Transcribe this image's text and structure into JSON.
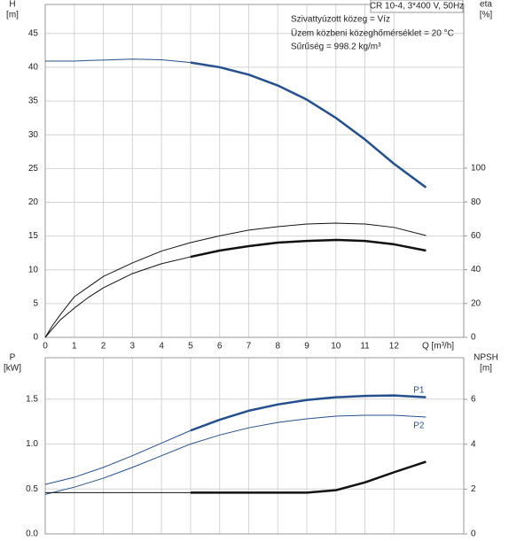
{
  "chart_data": [
    {
      "type": "line",
      "title": "CR 10-4, 3*400 V, 50Hz",
      "annotations": [
        "Szivattyúzott közeg = Víz",
        "Üzem közbeni közeghőmérséklet = 20 °C",
        "Sűrűség = 998.2 kg/m³"
      ],
      "xlabel": "Q [m³/h]",
      "ylabel": "H",
      "yunit": "[m]",
      "y2label": "eta",
      "y2unit": "[%]",
      "xlim": [
        0,
        14.4
      ],
      "xticks": [
        0,
        1,
        2,
        3,
        4,
        5,
        6,
        7,
        8,
        9,
        10,
        11,
        12
      ],
      "ylim": [
        0,
        49.3
      ],
      "yticks": [
        0,
        5,
        10,
        15,
        20,
        25,
        30,
        35,
        40,
        45
      ],
      "y2lim": [
        0,
        196.8
      ],
      "y2ticks": [
        0,
        20,
        40,
        60,
        80,
        100
      ],
      "grid": true,
      "show_xtick_labels": true,
      "x": [
        0,
        0.25,
        0.5,
        1,
        1.5,
        2,
        3,
        4,
        5,
        6,
        7,
        8,
        9,
        10,
        11,
        12,
        13.1
      ],
      "series": [
        {
          "color": "#24508f",
          "width": 1,
          "values": [
            40.9,
            40.9,
            40.9,
            40.9,
            41.0,
            41.05,
            41.2,
            41.1,
            40.7,
            null,
            null,
            null,
            null,
            null,
            null,
            null,
            null
          ]
        },
        {
          "color": "#24508f",
          "width": 2.5,
          "values": [
            null,
            null,
            null,
            null,
            null,
            null,
            null,
            null,
            40.7,
            40.0,
            38.9,
            37.3,
            35.2,
            32.5,
            29.3,
            25.7,
            22.2
          ]
        },
        {
          "color": "#111111",
          "width": 1,
          "axis": "y2",
          "values": [
            0,
            7,
            13,
            24,
            30,
            36,
            44,
            51,
            56,
            60,
            63.4,
            65.4,
            67,
            67.5,
            67,
            65,
            60.2
          ]
        },
        {
          "color": "#111111",
          "width": 1,
          "axis": "y2",
          "values": [
            0,
            5,
            10,
            17.3,
            23.8,
            29.3,
            37.7,
            43.5,
            47.6,
            null,
            null,
            null,
            null,
            null,
            null,
            null,
            null
          ]
        },
        {
          "color": "#111111",
          "width": 2.5,
          "axis": "y2",
          "values": [
            null,
            null,
            null,
            null,
            null,
            null,
            null,
            null,
            47.6,
            51.3,
            53.9,
            56,
            57,
            57.6,
            57,
            55,
            51.3
          ]
        }
      ]
    },
    {
      "type": "line",
      "ylabel": "P",
      "yunit": "[kW]",
      "y2label": "NPSH",
      "y2unit": "[m]",
      "xlim": [
        0,
        14.4
      ],
      "xticks": [
        0,
        1,
        2,
        3,
        4,
        5,
        6,
        7,
        8,
        9,
        10,
        11,
        12
      ],
      "ylim": [
        0,
        1.96
      ],
      "yticks": [
        {
          "value": 0,
          "label": "0.0"
        },
        {
          "value": 0.5,
          "label": "0.5"
        },
        {
          "value": 1,
          "label": "1.0"
        },
        {
          "value": 1.5,
          "label": "1.5"
        }
      ],
      "y2lim": [
        0,
        7.86
      ],
      "y2ticks": [
        0,
        2,
        4,
        6
      ],
      "grid": true,
      "show_xtick_labels": false,
      "x": [
        0,
        1,
        2,
        3,
        4,
        5,
        6,
        7,
        8,
        9,
        10,
        11,
        12,
        13.1
      ],
      "series": [
        {
          "color": "#24508f",
          "width": 1,
          "values": [
            0.55,
            0.63,
            0.74,
            0.87,
            1.01,
            1.15,
            null,
            null,
            null,
            null,
            null,
            null,
            null,
            null
          ]
        },
        {
          "name": "P1",
          "label_pos": "above",
          "color": "#24508f",
          "width": 2.5,
          "values": [
            null,
            null,
            null,
            null,
            null,
            1.15,
            1.27,
            1.37,
            1.44,
            1.49,
            1.52,
            1.535,
            1.54,
            1.52
          ]
        },
        {
          "name": "P2",
          "label_pos": "below",
          "color": "#24508f",
          "width": 1,
          "values": [
            0.44,
            0.52,
            0.62,
            0.74,
            0.87,
            1.0,
            1.1,
            1.18,
            1.24,
            1.28,
            1.31,
            1.32,
            1.32,
            1.3
          ]
        },
        {
          "color": "#111111",
          "width": 1,
          "axis": "y2",
          "values": [
            1.84,
            1.84,
            1.84,
            1.84,
            1.84,
            1.84,
            null,
            null,
            null,
            null,
            null,
            null,
            null,
            null
          ]
        },
        {
          "color": "#111111",
          "width": 2.5,
          "axis": "y2",
          "values": [
            null,
            null,
            null,
            null,
            null,
            1.84,
            1.84,
            1.84,
            1.84,
            1.84,
            1.95,
            2.3,
            2.75,
            3.22
          ]
        }
      ]
    }
  ]
}
